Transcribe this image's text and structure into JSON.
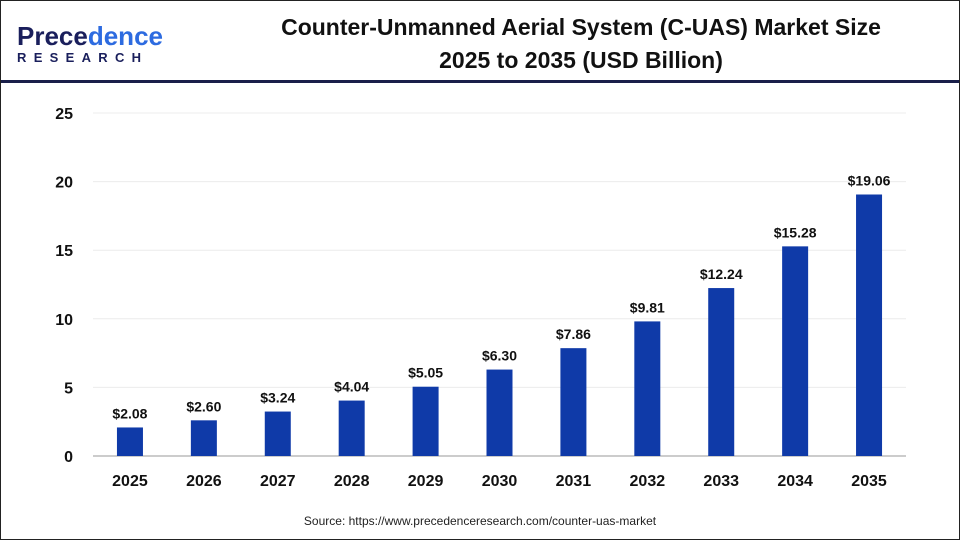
{
  "logo": {
    "line1_a": "P",
    "line1_b": "rece",
    "line1_c": "dence",
    "line2": "RESEARCH",
    "full": "Precedence Research"
  },
  "title_line1": "Counter-Unmanned Aerial System (C-UAS) Market Size",
  "title_line2": "2025 to 2035 (USD Billion)",
  "source": "Source: https://www.precedenceresearch.com/counter-uas-market",
  "chart_data": {
    "type": "bar",
    "title": "Counter-Unmanned Aerial System (C-UAS) Market Size 2025 to 2035 (USD Billion)",
    "categories": [
      "2025",
      "2026",
      "2027",
      "2028",
      "2029",
      "2030",
      "2031",
      "2032",
      "2033",
      "2034",
      "2035"
    ],
    "values": [
      2.08,
      2.6,
      3.24,
      4.04,
      5.05,
      6.3,
      7.86,
      9.81,
      12.24,
      15.28,
      19.06
    ],
    "labels": [
      "$2.08",
      "$2.60",
      "$3.24",
      "$4.04",
      "$5.05",
      "$6.30",
      "$7.86",
      "$9.81",
      "$12.24",
      "$15.28",
      "$19.06"
    ],
    "ylim": [
      0,
      25
    ],
    "yticks": [
      0,
      5,
      10,
      15,
      20,
      25
    ],
    "grid": true,
    "bar_color": "#0f3aa8",
    "xlabel": "",
    "ylabel": ""
  }
}
